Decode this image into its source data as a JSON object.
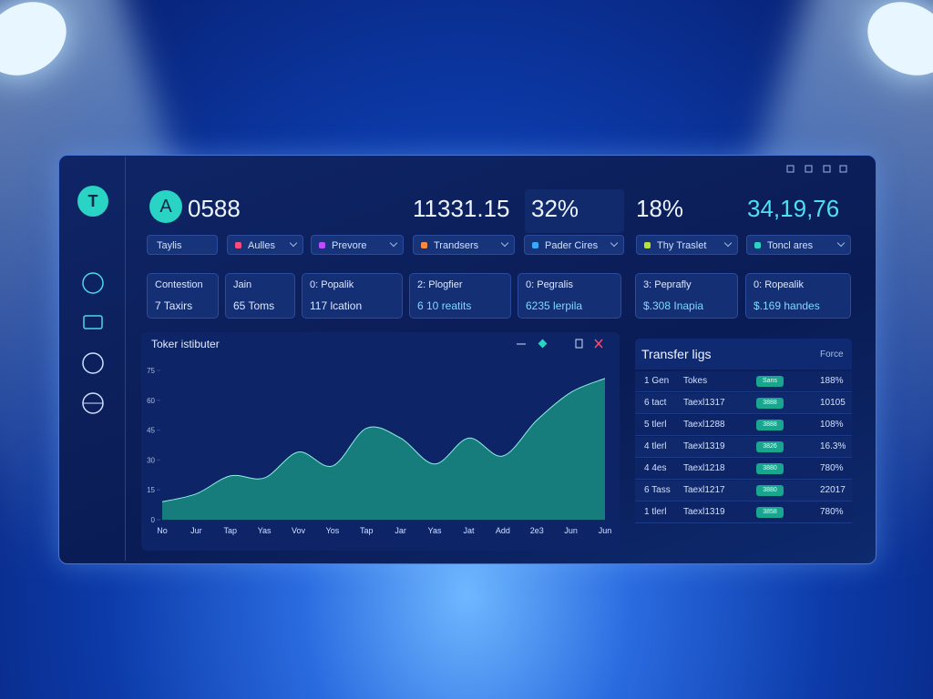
{
  "header": {
    "avatar": "A",
    "stats": [
      "0588",
      "11331.15",
      "32%",
      "18%",
      "34,19,76"
    ]
  },
  "sidebar": {
    "logo": "T"
  },
  "filters": [
    "Taylis",
    "Aulles",
    "Prevore",
    "Trandsers",
    "Pader Cires",
    "Thy Traslet",
    "Toncl ares"
  ],
  "cards": [
    {
      "title": "Contestion",
      "value": "7 Taxirs"
    },
    {
      "title": "Jain",
      "value": "65 Toms"
    },
    {
      "title": "0: Popalik",
      "value": "117 lcation"
    },
    {
      "title": "2: Plogfier",
      "value": "6 10 reatits"
    },
    {
      "title": "0: Pegralis",
      "value": "6235 lerpila"
    },
    {
      "title": "3: Peprafly",
      "value": "$.308 Inapia"
    },
    {
      "title": "0: Ropealik",
      "value": "$.169 handes"
    }
  ],
  "chart": {
    "type": "area",
    "title": "Toker istibuter",
    "color": "#17877e",
    "categories": [
      "No",
      "Jur",
      "Tap",
      "Yas",
      "Vov",
      "Yos",
      "Tap",
      "Jar",
      "Yas",
      "Jat",
      "Add",
      "2e3",
      "Jun",
      "Jun"
    ],
    "values": [
      9,
      13,
      22,
      21,
      34,
      27,
      46,
      41,
      28,
      41,
      32,
      50,
      64,
      71
    ],
    "ylim": [
      0,
      75
    ],
    "yticks": [
      0,
      15,
      30,
      45,
      60,
      75
    ]
  },
  "table": {
    "title": "Transfer ligs",
    "action": "Force",
    "rows": [
      [
        "1 Gen",
        "Tokes",
        "Sans",
        "188%"
      ],
      [
        "6 tact",
        "Taexl1317",
        "3888",
        "10105"
      ],
      [
        "5 tlerl",
        "Taexl1288",
        "3888",
        "108%"
      ],
      [
        "4 tlerl",
        "Taexl1319",
        "3826",
        "16.3%"
      ],
      [
        "4 4es",
        "Taexl1218",
        "3880",
        "780%"
      ],
      [
        "6 Tass",
        "Taexl1217",
        "3880",
        "22017"
      ],
      [
        "1 tlerl",
        "Taexl1319",
        "3858",
        "780%"
      ]
    ]
  }
}
